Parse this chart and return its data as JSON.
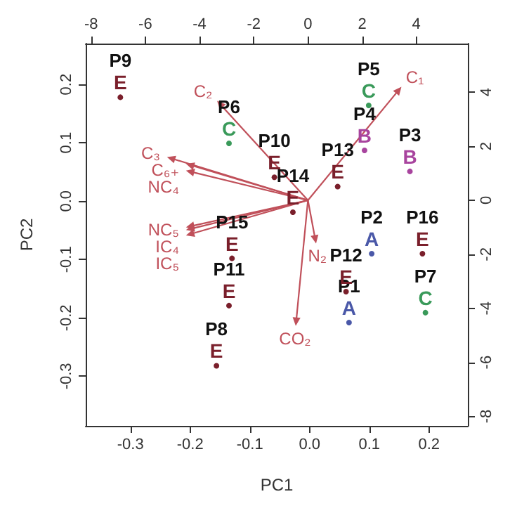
{
  "chart_data": {
    "type": "scatter",
    "xlabel": "PC1",
    "ylabel": "PC2",
    "xlim": [
      -0.375,
      0.265
    ],
    "ylim": [
      -0.385,
      0.27
    ],
    "xticks": [
      -0.3,
      -0.2,
      -0.1,
      {
        "value": 0,
        "label": "0.0"
      },
      0.1,
      0.2
    ],
    "yticks": [
      -0.3,
      -0.2,
      -0.1,
      {
        "value": 0,
        "label": "0.0"
      },
      0.1,
      0.2
    ],
    "x2lim": [
      -8.2,
      5.9
    ],
    "x2ticks": [
      -8,
      -6,
      -4,
      -2,
      0,
      2,
      4
    ],
    "y2lim": [
      -8.35,
      5.8
    ],
    "y2ticks": [
      -8,
      -6,
      -4,
      -2,
      0,
      2,
      4
    ],
    "grid": false,
    "legend": false,
    "marker": "circle",
    "series": [
      {
        "name": "A",
        "color": "#4a58a8",
        "x": [
          0.104,
          0.066
        ],
        "values": [
          -0.09,
          -0.208
        ],
        "value_labels": [
          "P2",
          "P1"
        ]
      },
      {
        "name": "B",
        "color": "#a8449e",
        "x": [
          0.092,
          0.168
        ],
        "values": [
          0.087,
          0.051
        ],
        "value_labels": [
          "P4",
          "P3"
        ]
      },
      {
        "name": "C",
        "color": "#3a9a5a",
        "x": [
          0.099,
          -0.135,
          0.194
        ],
        "values": [
          0.164,
          0.099,
          -0.191
        ],
        "value_labels": [
          "P5",
          "P6",
          "P7"
        ]
      },
      {
        "name": "E",
        "color": "#7a1f2b",
        "x": [
          -0.317,
          -0.059,
          0.047,
          -0.028,
          0.189,
          -0.13,
          0.061,
          -0.135,
          -0.156
        ],
        "values": [
          0.178,
          0.041,
          0.025,
          -0.019,
          -0.09,
          -0.098,
          -0.155,
          -0.179,
          -0.282
        ],
        "value_labels": [
          "P9",
          "P10",
          "P13",
          "P14",
          "P16",
          "P15",
          "P12",
          "P11",
          "P8"
        ]
      }
    ],
    "annotations": [
      "C₁",
      "C₂",
      "C₃",
      "C₆₊",
      "NC₄",
      "NC₅",
      "IC₄",
      "IC₅",
      "N₂",
      "CO₂"
    ]
  }
}
